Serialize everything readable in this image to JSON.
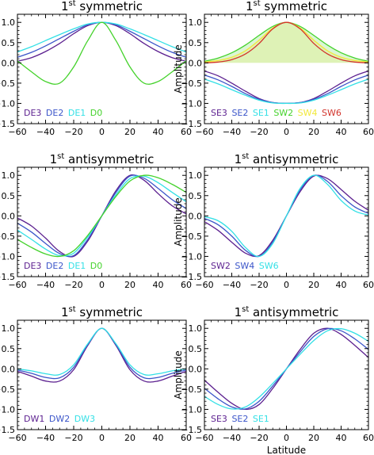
{
  "figure": {
    "x_label": "Latitude",
    "y_label": "Amplitude"
  },
  "chart_data": [
    {
      "type": "line",
      "title_main": "1",
      "title_sup": "st",
      "title_rest": "symmetric",
      "xlabel": "",
      "ylabel": "Amplitude",
      "xlim": [
        -60,
        60
      ],
      "ylim": [
        -1.5,
        1.2
      ],
      "xticks": [
        -60,
        -40,
        -20,
        0,
        20,
        40,
        60
      ],
      "yticks": [
        -1.5,
        -1.0,
        -0.5,
        0.0,
        0.5,
        1.0
      ],
      "grid": false,
      "legend_position": "bottom-left",
      "series": [
        {
          "name": "DE3",
          "color": "#5b1f8f",
          "fill": false,
          "x": [
            -60,
            -50,
            -40,
            -30,
            -20,
            -10,
            0,
            10,
            20,
            30,
            40,
            50,
            60
          ],
          "y": [
            0.04,
            0.13,
            0.28,
            0.48,
            0.72,
            0.92,
            1.0,
            0.92,
            0.72,
            0.48,
            0.28,
            0.13,
            0.04
          ]
        },
        {
          "name": "DE2",
          "color": "#3b55c9",
          "fill": false,
          "x": [
            -60,
            -50,
            -40,
            -30,
            -20,
            -10,
            0,
            10,
            20,
            30,
            40,
            50,
            60
          ],
          "y": [
            0.14,
            0.26,
            0.42,
            0.6,
            0.78,
            0.94,
            1.0,
            0.94,
            0.78,
            0.6,
            0.42,
            0.26,
            0.14
          ]
        },
        {
          "name": "DE1",
          "color": "#33e0e6",
          "fill": false,
          "x": [
            -60,
            -50,
            -40,
            -30,
            -20,
            -10,
            0,
            10,
            20,
            30,
            40,
            50,
            60
          ],
          "y": [
            0.27,
            0.4,
            0.55,
            0.7,
            0.84,
            0.96,
            1.0,
            0.96,
            0.84,
            0.7,
            0.55,
            0.4,
            0.27
          ]
        },
        {
          "name": "D0",
          "color": "#44d22b",
          "fill": false,
          "x": [
            -60,
            -50,
            -40,
            -30,
            -20,
            -10,
            0,
            10,
            20,
            30,
            40,
            50,
            60
          ],
          "y": [
            0.05,
            -0.22,
            -0.46,
            -0.5,
            -0.1,
            0.55,
            1.0,
            0.55,
            -0.1,
            -0.5,
            -0.46,
            -0.22,
            0.05
          ]
        }
      ]
    },
    {
      "type": "line",
      "title_main": "1",
      "title_sup": "st",
      "title_rest": "symmetric",
      "xlabel": "",
      "ylabel": "Amplitude",
      "xlim": [
        -60,
        60
      ],
      "ylim": [
        -1.5,
        1.2
      ],
      "xticks": [
        -60,
        -40,
        -20,
        0,
        20,
        40,
        60
      ],
      "yticks": [
        -1.5,
        -1.0,
        -0.5,
        0.0,
        0.5,
        1.0
      ],
      "grid": false,
      "legend_position": "bottom-left",
      "series": [
        {
          "name": "SE3",
          "color": "#5b1f8f",
          "fill": false,
          "x": [
            -60,
            -50,
            -40,
            -30,
            -20,
            -10,
            0,
            10,
            20,
            30,
            40,
            50,
            60
          ],
          "y": [
            -0.2,
            -0.32,
            -0.5,
            -0.7,
            -0.88,
            -0.98,
            -1.0,
            -0.98,
            -0.88,
            -0.7,
            -0.5,
            -0.32,
            -0.2
          ]
        },
        {
          "name": "SE2",
          "color": "#3b55c9",
          "fill": false,
          "x": [
            -60,
            -50,
            -40,
            -30,
            -20,
            -10,
            0,
            10,
            20,
            30,
            40,
            50,
            60
          ],
          "y": [
            -0.3,
            -0.42,
            -0.58,
            -0.76,
            -0.9,
            -0.98,
            -1.0,
            -0.98,
            -0.9,
            -0.76,
            -0.58,
            -0.42,
            -0.3
          ]
        },
        {
          "name": "SE1",
          "color": "#33e0e6",
          "fill": false,
          "x": [
            -60,
            -50,
            -40,
            -30,
            -20,
            -10,
            0,
            10,
            20,
            30,
            40,
            50,
            60
          ],
          "y": [
            -0.4,
            -0.52,
            -0.66,
            -0.8,
            -0.92,
            -0.99,
            -1.0,
            -0.99,
            -0.92,
            -0.8,
            -0.66,
            -0.52,
            -0.4
          ]
        },
        {
          "name": "SW2",
          "color": "#44d22b",
          "fill": true,
          "x": [
            -60,
            -50,
            -40,
            -30,
            -20,
            -10,
            0,
            10,
            20,
            30,
            40,
            50,
            60
          ],
          "y": [
            0.04,
            0.12,
            0.25,
            0.44,
            0.68,
            0.9,
            1.0,
            0.9,
            0.68,
            0.44,
            0.25,
            0.12,
            0.04
          ]
        },
        {
          "name": "SW4",
          "color": "#f2e83a",
          "fill": true,
          "x": [
            -60,
            -50,
            -40,
            -30,
            -20,
            -10,
            0,
            10,
            20,
            30,
            40,
            50,
            60
          ],
          "y": [
            0.02,
            0.06,
            0.14,
            0.3,
            0.56,
            0.86,
            1.0,
            0.86,
            0.56,
            0.3,
            0.14,
            0.06,
            0.02
          ]
        },
        {
          "name": "SW6",
          "color": "#d2332b",
          "fill": false,
          "x": [
            -60,
            -50,
            -40,
            -30,
            -20,
            -10,
            0,
            10,
            20,
            30,
            40,
            50,
            60
          ],
          "y": [
            0.0,
            0.02,
            0.08,
            0.22,
            0.48,
            0.84,
            1.0,
            0.84,
            0.48,
            0.22,
            0.08,
            0.02,
            0.0
          ]
        }
      ]
    },
    {
      "type": "line",
      "title_main": "1",
      "title_sup": "st",
      "title_rest": "antisymmetric",
      "xlabel": "",
      "ylabel": "Amplitude",
      "xlim": [
        -60,
        60
      ],
      "ylim": [
        -1.5,
        1.2
      ],
      "xticks": [
        -60,
        -40,
        -20,
        0,
        20,
        40,
        60
      ],
      "yticks": [
        -1.5,
        -1.0,
        -0.5,
        0.0,
        0.5,
        1.0
      ],
      "grid": false,
      "legend_position": "bottom-left",
      "series": [
        {
          "name": "DE3",
          "color": "#5b1f8f",
          "fill": false,
          "x": [
            -60,
            -50,
            -40,
            -30,
            -20,
            -10,
            0,
            10,
            20,
            30,
            40,
            50,
            60
          ],
          "y": [
            -0.05,
            -0.25,
            -0.55,
            -0.88,
            -1.0,
            -0.62,
            0.0,
            0.62,
            1.0,
            0.88,
            0.55,
            0.25,
            0.05
          ]
        },
        {
          "name": "DE2",
          "color": "#3b55c9",
          "fill": false,
          "x": [
            -60,
            -50,
            -40,
            -30,
            -20,
            -10,
            0,
            10,
            20,
            30,
            40,
            50,
            60
          ],
          "y": [
            -0.18,
            -0.4,
            -0.68,
            -0.93,
            -0.98,
            -0.58,
            0.0,
            0.58,
            0.98,
            0.93,
            0.68,
            0.4,
            0.18
          ]
        },
        {
          "name": "DE1",
          "color": "#33e0e6",
          "fill": false,
          "x": [
            -60,
            -50,
            -40,
            -30,
            -20,
            -10,
            0,
            10,
            20,
            30,
            40,
            50,
            60
          ],
          "y": [
            -0.35,
            -0.58,
            -0.82,
            -0.98,
            -0.92,
            -0.52,
            0.0,
            0.52,
            0.92,
            0.98,
            0.82,
            0.58,
            0.35
          ]
        },
        {
          "name": "D0",
          "color": "#44d22b",
          "fill": false,
          "x": [
            -60,
            -50,
            -40,
            -30,
            -20,
            -10,
            0,
            10,
            20,
            30,
            40,
            50,
            60
          ],
          "y": [
            -0.58,
            -0.78,
            -0.94,
            -1.0,
            -0.86,
            -0.48,
            0.0,
            0.48,
            0.86,
            1.0,
            0.94,
            0.78,
            0.58
          ]
        }
      ]
    },
    {
      "type": "line",
      "title_main": "1",
      "title_sup": "st",
      "title_rest": "antisymmetric",
      "xlabel": "",
      "ylabel": "Amplitude",
      "xlim": [
        -60,
        60
      ],
      "ylim": [
        -1.5,
        1.2
      ],
      "xticks": [
        -60,
        -40,
        -20,
        0,
        20,
        40,
        60
      ],
      "yticks": [
        -1.5,
        -1.0,
        -0.5,
        0.0,
        0.5,
        1.0
      ],
      "grid": false,
      "legend_position": "bottom-left",
      "series": [
        {
          "name": "SW2",
          "color": "#5b1f8f",
          "fill": false,
          "x": [
            -60,
            -50,
            -40,
            -30,
            -20,
            -10,
            0,
            10,
            20,
            30,
            40,
            50,
            60
          ],
          "y": [
            -0.14,
            -0.36,
            -0.65,
            -0.92,
            -0.98,
            -0.6,
            0.0,
            0.6,
            0.98,
            0.92,
            0.65,
            0.36,
            0.14
          ]
        },
        {
          "name": "SW4",
          "color": "#3b55c9",
          "fill": false,
          "x": [
            -60,
            -50,
            -40,
            -30,
            -20,
            -10,
            0,
            10,
            20,
            30,
            40,
            50,
            60
          ],
          "y": [
            -0.06,
            -0.22,
            -0.5,
            -0.85,
            -1.0,
            -0.64,
            0.0,
            0.64,
            1.0,
            0.85,
            0.5,
            0.22,
            0.06
          ]
        },
        {
          "name": "SW6",
          "color": "#33e0e6",
          "fill": false,
          "x": [
            -60,
            -50,
            -40,
            -30,
            -20,
            -10,
            0,
            10,
            20,
            30,
            40,
            50,
            60
          ],
          "y": [
            -0.02,
            -0.12,
            -0.38,
            -0.78,
            -1.0,
            -0.68,
            0.0,
            0.68,
            1.0,
            0.78,
            0.38,
            0.12,
            0.02
          ]
        }
      ]
    },
    {
      "type": "line",
      "title_main": "1",
      "title_sup": "st",
      "title_rest": "symmetric",
      "xlabel": "",
      "ylabel": "Amplitude",
      "xlim": [
        -60,
        60
      ],
      "ylim": [
        -1.5,
        1.2
      ],
      "xticks": [
        -60,
        -40,
        -20,
        0,
        20,
        40,
        60
      ],
      "yticks": [
        -1.5,
        -1.0,
        -0.5,
        0.0,
        0.5,
        1.0
      ],
      "grid": false,
      "legend_position": "bottom-left",
      "series": [
        {
          "name": "DW1",
          "color": "#5b1f8f",
          "fill": false,
          "x": [
            -60,
            -50,
            -40,
            -30,
            -20,
            -10,
            0,
            10,
            20,
            30,
            40,
            50,
            60
          ],
          "y": [
            -0.06,
            -0.18,
            -0.3,
            -0.3,
            -0.02,
            0.58,
            1.0,
            0.58,
            -0.02,
            -0.3,
            -0.3,
            -0.18,
            -0.06
          ]
        },
        {
          "name": "DW2",
          "color": "#3b55c9",
          "fill": false,
          "x": [
            -60,
            -50,
            -40,
            -30,
            -20,
            -10,
            0,
            10,
            20,
            30,
            40,
            50,
            60
          ],
          "y": [
            -0.03,
            -0.11,
            -0.21,
            -0.22,
            0.04,
            0.6,
            1.0,
            0.6,
            0.04,
            -0.22,
            -0.21,
            -0.11,
            -0.03
          ]
        },
        {
          "name": "DW3",
          "color": "#33e0e6",
          "fill": false,
          "x": [
            -60,
            -50,
            -40,
            -30,
            -20,
            -10,
            0,
            10,
            20,
            30,
            40,
            50,
            60
          ],
          "y": [
            0.0,
            -0.05,
            -0.12,
            -0.14,
            0.1,
            0.62,
            1.0,
            0.62,
            0.1,
            -0.14,
            -0.12,
            -0.05,
            0.0
          ]
        }
      ]
    },
    {
      "type": "line",
      "title_main": "1",
      "title_sup": "st",
      "title_rest": "antisymmetric",
      "xlabel": "Latitude",
      "ylabel": "Amplitude",
      "xlim": [
        -60,
        60
      ],
      "ylim": [
        -1.5,
        1.2
      ],
      "xticks": [
        -60,
        -40,
        -20,
        0,
        20,
        40,
        60
      ],
      "yticks": [
        -1.5,
        -1.0,
        -0.5,
        0.0,
        0.5,
        1.0
      ],
      "grid": false,
      "legend_position": "bottom-left",
      "series": [
        {
          "name": "SE3",
          "color": "#5b1f8f",
          "fill": false,
          "x": [
            -60,
            -50,
            -40,
            -30,
            -20,
            -10,
            0,
            10,
            20,
            30,
            40,
            50,
            60
          ],
          "y": [
            -0.28,
            -0.58,
            -0.85,
            -1.0,
            -0.88,
            -0.48,
            0.0,
            0.48,
            0.88,
            1.0,
            0.85,
            0.58,
            0.28
          ]
        },
        {
          "name": "SE2",
          "color": "#3b55c9",
          "fill": false,
          "x": [
            -60,
            -50,
            -40,
            -30,
            -20,
            -10,
            0,
            10,
            20,
            30,
            40,
            50,
            60
          ],
          "y": [
            -0.48,
            -0.74,
            -0.94,
            -0.99,
            -0.8,
            -0.42,
            0.0,
            0.42,
            0.8,
            0.99,
            0.94,
            0.74,
            0.48
          ]
        },
        {
          "name": "SE1",
          "color": "#33e0e6",
          "fill": false,
          "x": [
            -60,
            -50,
            -40,
            -30,
            -20,
            -10,
            0,
            10,
            20,
            30,
            40,
            50,
            60
          ],
          "y": [
            -0.68,
            -0.88,
            -0.99,
            -0.94,
            -0.7,
            -0.36,
            0.0,
            0.36,
            0.7,
            0.94,
            0.99,
            0.88,
            0.68
          ]
        }
      ]
    }
  ]
}
